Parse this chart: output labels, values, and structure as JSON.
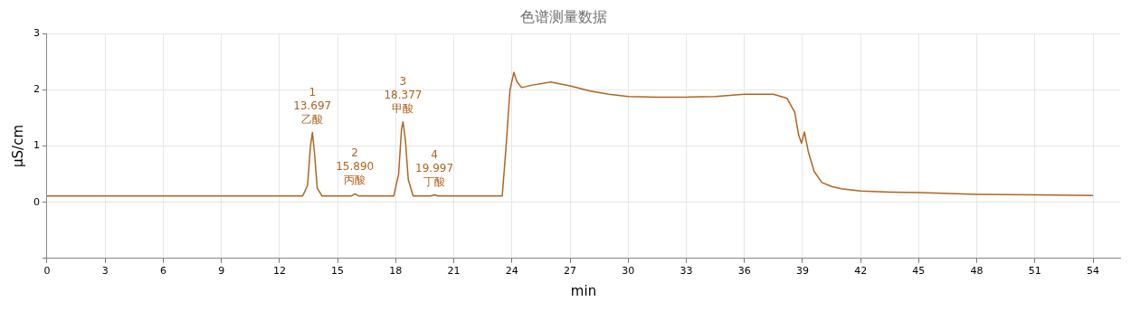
{
  "chart_data": {
    "type": "line",
    "title": "色谱测量数据",
    "xlabel": "min",
    "ylabel": "µS/cm",
    "xlim": [
      0,
      55.4
    ],
    "xticks": [
      0,
      3,
      6,
      9,
      12,
      15,
      18,
      21,
      24,
      27,
      30,
      33,
      36,
      39,
      42,
      45,
      48,
      51,
      54
    ],
    "ylim": [
      -1,
      3
    ],
    "yticks": [
      {
        "value": -1,
        "label": null
      },
      0,
      1,
      2,
      3
    ],
    "grid": true,
    "legend": false,
    "marker": "none",
    "line_style": "solid",
    "series": [
      {
        "color": "#b0641e",
        "x": [
          0,
          13.2,
          13.45,
          13.6,
          13.7,
          13.8,
          13.95,
          14.2,
          15.7,
          15.9,
          16.1,
          17.9,
          18.15,
          18.3,
          18.38,
          18.5,
          18.65,
          18.9,
          19.8,
          20.0,
          20.2,
          23.5,
          23.7,
          23.9,
          24.1,
          24.25,
          24.5,
          25,
          26,
          27,
          28,
          29,
          30,
          31.5,
          33,
          34.5,
          36,
          37.5,
          38.2,
          38.6,
          38.8,
          38.95,
          39.1,
          39.3,
          39.6,
          40,
          40.5,
          41,
          42,
          43.5,
          45,
          48,
          51,
          54
        ],
        "values": [
          0.11,
          0.11,
          0.3,
          1.0,
          1.24,
          0.9,
          0.25,
          0.11,
          0.11,
          0.15,
          0.11,
          0.11,
          0.5,
          1.3,
          1.43,
          1.1,
          0.4,
          0.11,
          0.11,
          0.13,
          0.11,
          0.11,
          1.0,
          2.0,
          2.31,
          2.15,
          2.04,
          2.08,
          2.14,
          2.07,
          1.98,
          1.92,
          1.88,
          1.87,
          1.87,
          1.88,
          1.92,
          1.92,
          1.85,
          1.6,
          1.2,
          1.05,
          1.25,
          0.9,
          0.55,
          0.35,
          0.28,
          0.24,
          0.2,
          0.18,
          0.17,
          0.14,
          0.13,
          0.12
        ]
      }
    ],
    "annotations": [
      {
        "text": "1\n13.697\n乙酸",
        "x": 13.697,
        "y": 1.24
      },
      {
        "text": "2\n15.890\n丙酸",
        "x": 15.89,
        "y": 0.15
      },
      {
        "text": "3\n18.377\n甲酸",
        "x": 18.377,
        "y": 1.43
      },
      {
        "text": "4\n19.997\n丁酸",
        "x": 19.997,
        "y": 0.13
      }
    ]
  }
}
